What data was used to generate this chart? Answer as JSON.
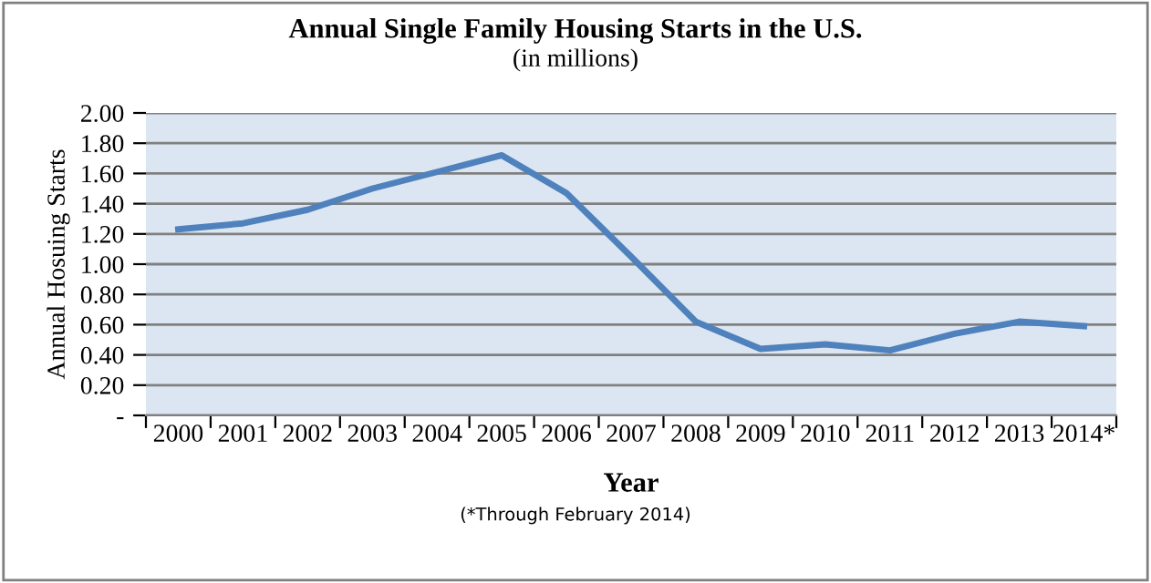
{
  "chart_data": {
    "type": "line",
    "title": "Annual Single Family Housing Starts in the U.S.",
    "subtitle": "(in millions)",
    "xlabel": "Year",
    "ylabel": "Annual Hosuing Starts",
    "categories": [
      "2000",
      "2001",
      "2002",
      "2003",
      "2004",
      "2005",
      "2006",
      "2007",
      "2008",
      "2009",
      "2010",
      "2011",
      "2012",
      "2013",
      "2014*"
    ],
    "series": [
      {
        "color": "#4f81bd",
        "values": [
          1.23,
          1.27,
          1.36,
          1.5,
          1.61,
          1.72,
          1.47,
          1.05,
          0.62,
          0.44,
          0.47,
          0.43,
          0.54,
          0.62,
          0.59
        ]
      }
    ],
    "ylim": [
      0,
      2
    ],
    "yticks": [
      {
        "value": 0,
        "label": "-"
      },
      {
        "value": 0.2,
        "label": "0.20"
      },
      {
        "value": 0.4,
        "label": "0.40"
      },
      {
        "value": 0.6,
        "label": "0.60"
      },
      {
        "value": 0.8,
        "label": "0.80"
      },
      {
        "value": 1.0,
        "label": "1.00"
      },
      {
        "value": 1.2,
        "label": "1.20"
      },
      {
        "value": 1.4,
        "label": "1.40"
      },
      {
        "value": 1.6,
        "label": "1.60"
      },
      {
        "value": 1.8,
        "label": "1.80"
      },
      {
        "value": 2.0,
        "label": "2.00"
      }
    ],
    "grid": "y",
    "legend": false,
    "marker": "none",
    "line_style": "solid",
    "annotations": [
      "(*Through February 2014)"
    ]
  }
}
